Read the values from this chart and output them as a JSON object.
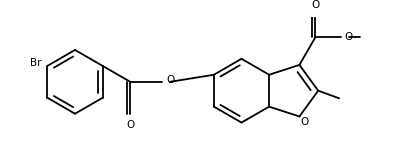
{
  "bg_color": "#ffffff",
  "line_color": "#000000",
  "lw": 1.3,
  "fs": 7.5,
  "figsize": [
    3.98,
    1.64
  ],
  "dpi": 100,
  "xlim": [
    0,
    10
  ],
  "ylim": [
    0,
    4.12
  ]
}
